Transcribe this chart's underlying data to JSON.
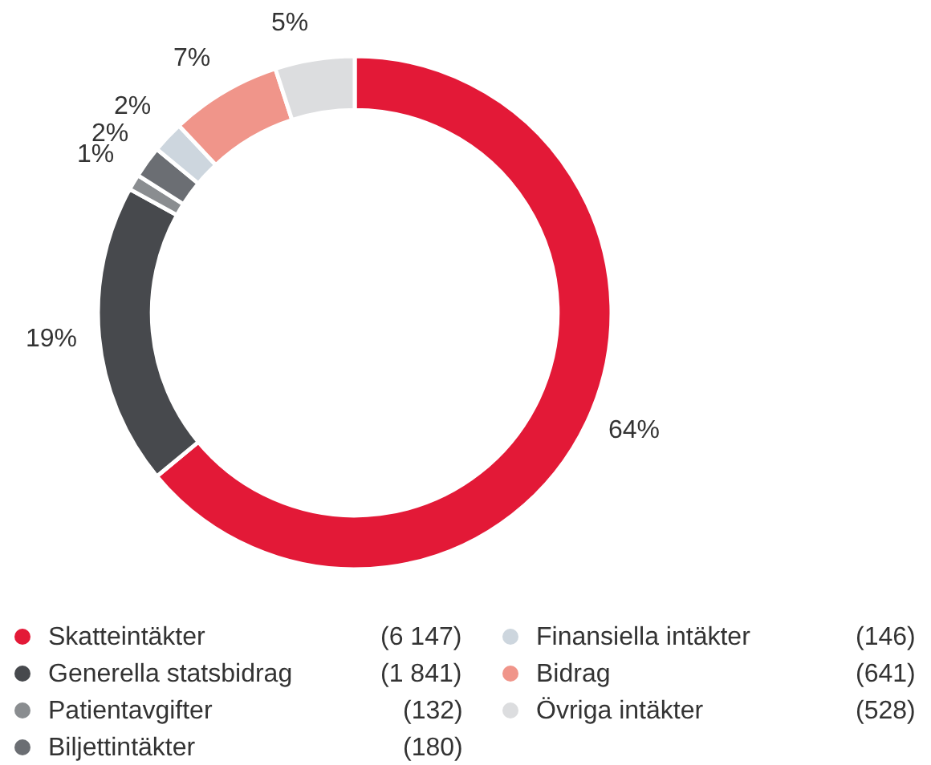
{
  "chart_data": {
    "type": "donut",
    "categories": [
      "Skatteintäkter",
      "Generella statsbidrag",
      "Patientavgifter",
      "Biljettintäkter",
      "Finansiella intäkter",
      "Bidrag",
      "Övriga intäkter"
    ],
    "values": [
      64,
      19,
      1,
      2,
      2,
      7,
      5
    ],
    "value_labels": [
      "64%",
      "19%",
      "1%",
      "2%",
      "2%",
      "7%",
      "5%"
    ],
    "colors": [
      "#e31937",
      "#47494d",
      "#8a8d90",
      "#6b6e73",
      "#cdd6de",
      "#f0958a",
      "#dcdddf"
    ],
    "annotations": [
      "(6 147)",
      "(1 841)",
      "(132)",
      "(180)",
      "(146)",
      "(641)",
      "(528)"
    ],
    "legend": "bottom"
  }
}
